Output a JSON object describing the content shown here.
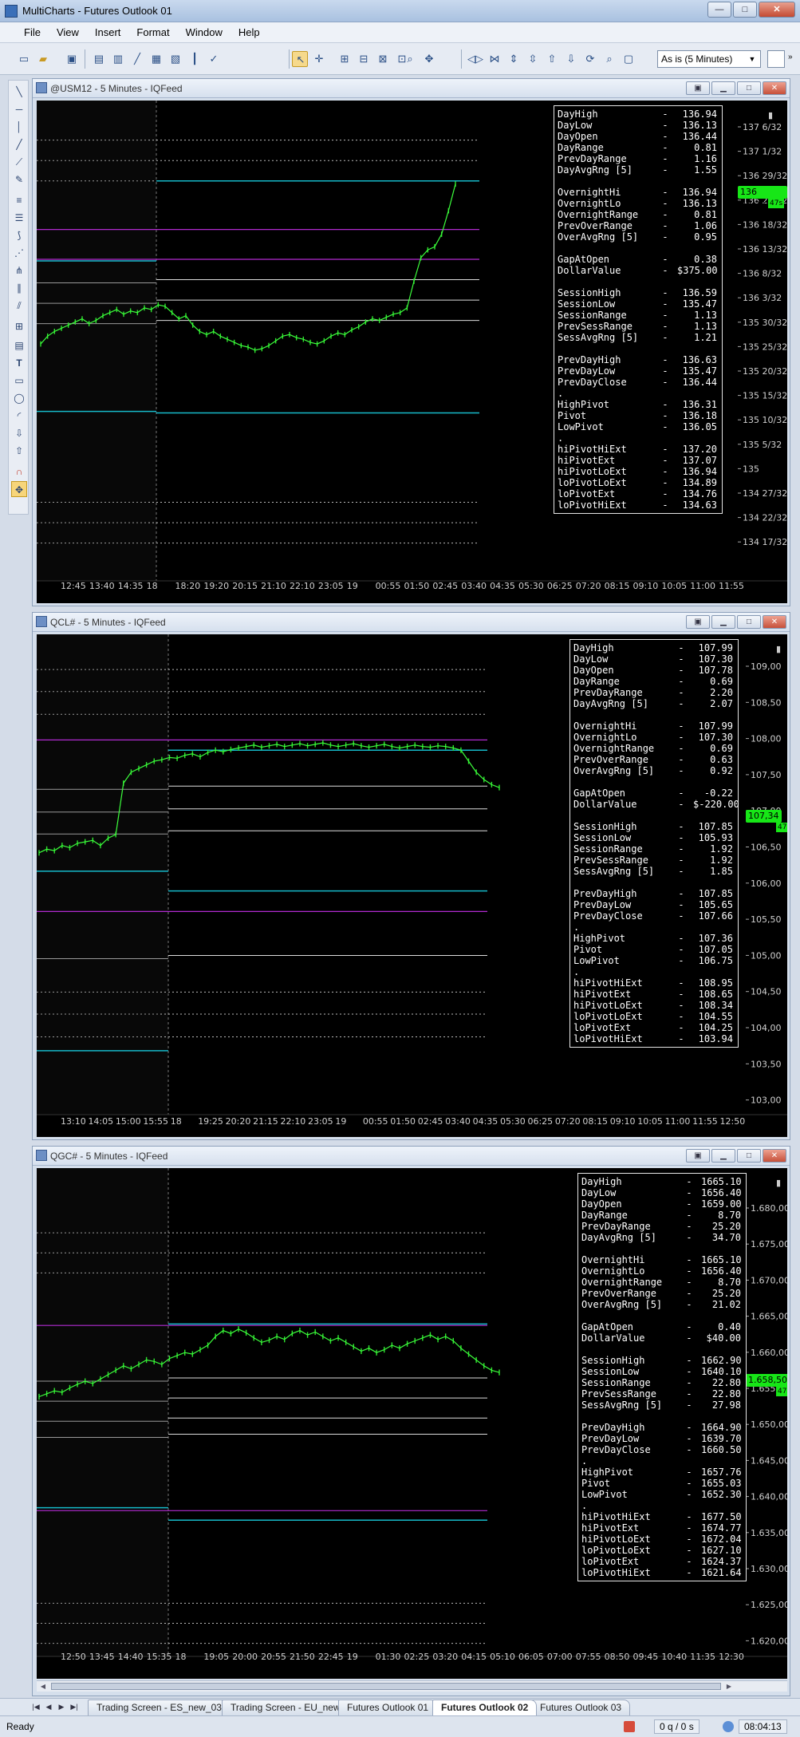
{
  "window": {
    "title": "MultiCharts - Futures Outlook 01",
    "buttons": {
      "minimize": "—",
      "maximize": "□",
      "close": "✕"
    }
  },
  "menu": [
    "File",
    "View",
    "Insert",
    "Format",
    "Window",
    "Help"
  ],
  "toolbar": {
    "interval": "As is (5 Minutes)",
    "icons": [
      "new-window-icon",
      "open-folder-icon",
      "save-icon",
      "cursor-icon",
      "crosshair-icon",
      "zoom-icon",
      "pan-icon",
      "chart-type-icon",
      "add-study-icon",
      "format-icon",
      "scroll-left-icon",
      "scroll-right-icon",
      "zoom-in-icon",
      "zoom-out-icon",
      "magnifier-icon"
    ]
  },
  "drawing_tools": [
    "line-tool-icon",
    "horizontal-line-icon",
    "vertical-line-icon",
    "ray-icon",
    "extended-line-icon",
    "pencil-icon",
    "parallel-lines-icon",
    "fib-retracement-icon",
    "fib-fan-icon",
    "gann-fan-icon",
    "andrews-pitchfork-icon",
    "fib-timezones-icon",
    "regression-channel-icon",
    "text-tool-icon",
    "rectangle-tool-icon",
    "ellipse-tool-icon",
    "arc-tool-icon",
    "arrow-down-icon",
    "arrow-up-icon",
    "magnet-icon",
    "snap-icon"
  ],
  "charts": [
    {
      "id": "usm12",
      "title": "@USM12 - 5 Minutes - IQFeed",
      "price_labels": [
        "137 6/32",
        "137 1/32",
        "136 29/32",
        "136 23/32",
        "136 18/32",
        "136 13/32",
        "136 8/32",
        "136 3/32",
        "135 30/32",
        "135 25/32",
        "135 20/32",
        "135 15/32",
        "135 10/32",
        "135 5/32",
        "135",
        "134 27/32",
        "134 22/32",
        "134 17/32"
      ],
      "last_price": "136 29/32",
      "count_tag": "47s",
      "time_labels": [
        "12:45",
        "13:40",
        "14:35",
        "18",
        "18:20",
        "19:20",
        "20:15",
        "21:10",
        "22:10",
        "23:05",
        "19",
        "00:55",
        "01:50",
        "02:45",
        "03:40",
        "04:35",
        "05:30",
        "06:25",
        "07:20",
        "08:15",
        "09:10",
        "10:05",
        "11:00",
        "11:55"
      ],
      "info": [
        [
          "DayHigh",
          "-",
          "136.94"
        ],
        [
          "DayLow",
          "-",
          "136.13"
        ],
        [
          "DayOpen",
          "-",
          "136.44"
        ],
        [
          "DayRange",
          "-",
          "0.81"
        ],
        [
          "PrevDayRange",
          "-",
          "1.16"
        ],
        [
          "DayAvgRng [5]",
          "-",
          "1.55"
        ],
        null,
        [
          "OvernightHi",
          "-",
          "136.94"
        ],
        [
          "OvernightLo",
          "-",
          "136.13"
        ],
        [
          "OvernightRange",
          "-",
          "0.81"
        ],
        [
          "PrevOverRange",
          "-",
          "1.06"
        ],
        [
          "OverAvgRng [5]",
          "-",
          "0.95"
        ],
        null,
        [
          "GapAtOpen",
          "-",
          "0.38"
        ],
        [
          "DollarValue",
          "-",
          "$375.00"
        ],
        null,
        [
          "SessionHigh",
          "-",
          "136.59"
        ],
        [
          "SessionLow",
          "-",
          "135.47"
        ],
        [
          "SessionRange",
          "-",
          "1.13"
        ],
        [
          "PrevSessRange",
          "-",
          "1.13"
        ],
        [
          "SessAvgRng [5]",
          "-",
          "1.21"
        ],
        null,
        [
          "PrevDayHigh",
          "-",
          "136.63"
        ],
        [
          "PrevDayLow",
          "-",
          "135.47"
        ],
        [
          "PrevDayClose",
          "-",
          "136.44"
        ],
        ".",
        [
          "HighPivot",
          "-",
          "136.31"
        ],
        [
          "Pivot",
          "-",
          "136.18"
        ],
        [
          "LowPivot",
          "-",
          "136.05"
        ],
        ".",
        [
          "hiPivotHiExt",
          "-",
          "137.20"
        ],
        [
          "hiPivotExt",
          "-",
          "137.07"
        ],
        [
          "hiPivotLoExt",
          "-",
          "136.94"
        ],
        [
          "loPivotLoExt",
          "-",
          "134.89"
        ],
        [
          "loPivotExt",
          "-",
          "134.76"
        ],
        [
          "loPivotHiExt",
          "-",
          "134.63"
        ]
      ],
      "chart_data": {
        "type": "line",
        "ylim": [
          134.45,
          137.3
        ],
        "series": [
          {
            "values": [
              135.9,
              135.95,
              135.98,
              136.0,
              136.02,
              136.04,
              136.06,
              136.03,
              136.05,
              136.08,
              136.1,
              136.12,
              136.09,
              136.11,
              136.1,
              136.13,
              136.12,
              136.15,
              136.14,
              136.1,
              136.06,
              136.08,
              136.02,
              135.98,
              135.96,
              135.98,
              135.95,
              135.93,
              135.91,
              135.89,
              135.88,
              135.86,
              135.87,
              135.89,
              135.92,
              135.95,
              135.96,
              135.94,
              135.93,
              135.91,
              135.9,
              135.92,
              135.95,
              135.97,
              135.96,
              135.99,
              136.01,
              136.04,
              136.06,
              136.05,
              136.07,
              136.09,
              136.1,
              136.13,
              136.3,
              136.45,
              136.5,
              136.52,
              136.6,
              136.75,
              136.92
            ]
          }
        ],
        "levels": {
          "cyan": [
            136.94,
            136.43,
            135.46,
            135.47
          ],
          "magenta": [
            136.63,
            136.44
          ],
          "white": [
            136.18,
            136.31,
            136.05
          ],
          "dotted": [
            137.2,
            137.07,
            136.94,
            134.89,
            134.76,
            134.63
          ]
        }
      }
    },
    {
      "id": "qcl",
      "title": "QCL# - 5 Minutes - IQFeed",
      "price_labels": [
        "109,00",
        "108,50",
        "108,00",
        "107,50",
        "107,00",
        "106,50",
        "106,00",
        "105,50",
        "105,00",
        "104,50",
        "104,00",
        "103,50",
        "103,00"
      ],
      "last_price": "107,34",
      "count_tag": "47s",
      "time_labels": [
        "13:10",
        "14:05",
        "15:00",
        "15:55",
        "18",
        "19:25",
        "20:20",
        "21:15",
        "22:10",
        "23:05",
        "19",
        "00:55",
        "01:50",
        "02:45",
        "03:40",
        "04:35",
        "05:30",
        "06:25",
        "07:20",
        "08:15",
        "09:10",
        "10:05",
        "11:00",
        "11:55",
        "12:50"
      ],
      "info": [
        [
          "DayHigh",
          "-",
          "107.99"
        ],
        [
          "DayLow",
          "-",
          "107.30"
        ],
        [
          "DayOpen",
          "-",
          "107.78"
        ],
        [
          "DayRange",
          "-",
          "0.69"
        ],
        [
          "PrevDayRange",
          "-",
          "2.20"
        ],
        [
          "DayAvgRng [5]",
          "-",
          "2.07"
        ],
        null,
        [
          "OvernightHi",
          "-",
          "107.99"
        ],
        [
          "OvernightLo",
          "-",
          "107.30"
        ],
        [
          "OvernightRange",
          "-",
          "0.69"
        ],
        [
          "PrevOverRange",
          "-",
          "0.63"
        ],
        [
          "OverAvgRng [5]",
          "-",
          "0.92"
        ],
        null,
        [
          "GapAtOpen",
          "-",
          "-0.22"
        ],
        [
          "DollarValue",
          "-",
          "$-220.00"
        ],
        null,
        [
          "SessionHigh",
          "-",
          "107.85"
        ],
        [
          "SessionLow",
          "-",
          "105.93"
        ],
        [
          "SessionRange",
          "-",
          "1.92"
        ],
        [
          "PrevSessRange",
          "-",
          "1.92"
        ],
        [
          "SessAvgRng [5]",
          "-",
          "1.85"
        ],
        null,
        [
          "PrevDayHigh",
          "-",
          "107.85"
        ],
        [
          "PrevDayLow",
          "-",
          "105.65"
        ],
        [
          "PrevDayClose",
          "-",
          "107.66"
        ],
        ".",
        [
          "HighPivot",
          "-",
          "107.36"
        ],
        [
          "Pivot",
          "-",
          "107.05"
        ],
        [
          "LowPivot",
          "-",
          "106.75"
        ],
        ".",
        [
          "hiPivotHiExt",
          "-",
          "108.95"
        ],
        [
          "hiPivotExt",
          "-",
          "108.65"
        ],
        [
          "hiPivotLoExt",
          "-",
          "108.34"
        ],
        [
          "loPivotLoExt",
          "-",
          "104.55"
        ],
        [
          "loPivotExt",
          "-",
          "104.25"
        ],
        [
          "loPivotHiExt",
          "-",
          "103.94"
        ]
      ],
      "chart_data": {
        "type": "line",
        "ylim": [
          102.9,
          109.3
        ],
        "series": [
          {
            "values": [
              106.45,
              106.5,
              106.48,
              106.55,
              106.52,
              106.58,
              106.6,
              106.62,
              106.55,
              106.65,
              106.7,
              107.4,
              107.55,
              107.6,
              107.65,
              107.7,
              107.72,
              107.75,
              107.74,
              107.78,
              107.8,
              107.76,
              107.82,
              107.85,
              107.83,
              107.86,
              107.88,
              107.9,
              107.92,
              107.89,
              107.91,
              107.93,
              107.9,
              107.92,
              107.94,
              107.91,
              107.93,
              107.95,
              107.92,
              107.9,
              107.92,
              107.94,
              107.91,
              107.89,
              107.91,
              107.93,
              107.9,
              107.88,
              107.9,
              107.92,
              107.9,
              107.89,
              107.91,
              107.9,
              107.88,
              107.85,
              107.7,
              107.55,
              107.45,
              107.38,
              107.34
            ]
          }
        ],
        "levels": {
          "cyan": [
            107.85,
            106.2,
            105.93,
            103.75
          ],
          "magenta": [
            107.99,
            105.65
          ],
          "white": [
            107.36,
            107.05,
            106.75,
            105.05
          ],
          "dotted": [
            108.95,
            108.65,
            108.34,
            104.55,
            104.25,
            103.94
          ]
        }
      }
    },
    {
      "id": "qgc",
      "title": "QGC# - 5 Minutes - IQFeed",
      "price_labels": [
        "1.680,00",
        "1.675,00",
        "1.670,00",
        "1.665,00",
        "1.660,00",
        "1.655,00",
        "1.650,00",
        "1.645,00",
        "1.640,00",
        "1.635,00",
        "1.630,00",
        "1.625,00",
        "1.620,00"
      ],
      "last_price": "1.658,50",
      "count_tag": "47s",
      "time_labels": [
        "12:50",
        "13:45",
        "14:40",
        "15:35",
        "18",
        "19:05",
        "20:00",
        "20:55",
        "21:50",
        "22:45",
        "19",
        "01:30",
        "02:25",
        "03:20",
        "04:15",
        "05:10",
        "06:05",
        "07:00",
        "07:55",
        "08:50",
        "09:45",
        "10:40",
        "11:35",
        "12:30"
      ],
      "info": [
        [
          "DayHigh",
          "-",
          "1665.10"
        ],
        [
          "DayLow",
          "-",
          "1656.40"
        ],
        [
          "DayOpen",
          "-",
          "1659.00"
        ],
        [
          "DayRange",
          "-",
          "8.70"
        ],
        [
          "PrevDayRange",
          "-",
          "25.20"
        ],
        [
          "DayAvgRng [5]",
          "-",
          "34.70"
        ],
        null,
        [
          "OvernightHi",
          "-",
          "1665.10"
        ],
        [
          "OvernightLo",
          "-",
          "1656.40"
        ],
        [
          "OvernightRange",
          "-",
          "8.70"
        ],
        [
          "PrevOverRange",
          "-",
          "25.20"
        ],
        [
          "OverAvgRng [5]",
          "-",
          "21.02"
        ],
        null,
        [
          "GapAtOpen",
          "-",
          "0.40"
        ],
        [
          "DollarValue",
          "-",
          "$40.00"
        ],
        null,
        [
          "SessionHigh",
          "-",
          "1662.90"
        ],
        [
          "SessionLow",
          "-",
          "1640.10"
        ],
        [
          "SessionRange",
          "-",
          "22.80"
        ],
        [
          "PrevSessRange",
          "-",
          "22.80"
        ],
        [
          "SessAvgRng [5]",
          "-",
          "27.98"
        ],
        null,
        [
          "PrevDayHigh",
          "-",
          "1664.90"
        ],
        [
          "PrevDayLow",
          "-",
          "1639.70"
        ],
        [
          "PrevDayClose",
          "-",
          "1660.50"
        ],
        ".",
        [
          "HighPivot",
          "-",
          "1657.76"
        ],
        [
          "Pivot",
          "-",
          "1655.03"
        ],
        [
          "LowPivot",
          "-",
          "1652.30"
        ],
        ".",
        [
          "hiPivotHiExt",
          "-",
          "1677.50"
        ],
        [
          "hiPivotExt",
          "-",
          "1674.77"
        ],
        [
          "hiPivotLoExt",
          "-",
          "1672.04"
        ],
        [
          "loPivotLoExt",
          "-",
          "1627.10"
        ],
        [
          "loPivotExt",
          "-",
          "1624.37"
        ],
        [
          "loPivotHiExt",
          "-",
          "1621.64"
        ]
      ],
      "chart_data": {
        "type": "line",
        "ylim": [
          1619,
          1685
        ],
        "series": [
          {
            "values": [
              1655.2,
              1655.6,
              1656.0,
              1655.8,
              1656.4,
              1656.9,
              1657.3,
              1657.0,
              1657.6,
              1658.2,
              1658.8,
              1659.4,
              1659.0,
              1659.6,
              1660.2,
              1660.0,
              1659.6,
              1660.4,
              1660.8,
              1661.2,
              1661.0,
              1661.6,
              1662.2,
              1663.4,
              1664.2,
              1663.8,
              1664.4,
              1663.9,
              1663.2,
              1662.6,
              1662.9,
              1663.4,
              1663.0,
              1663.8,
              1664.2,
              1663.6,
              1664.0,
              1663.4,
              1662.8,
              1663.2,
              1662.6,
              1662.0,
              1661.4,
              1661.8,
              1661.2,
              1661.6,
              1662.2,
              1661.8,
              1662.4,
              1662.8,
              1663.2,
              1663.6,
              1663.0,
              1663.4,
              1662.8,
              1661.8,
              1661.0,
              1660.2,
              1659.4,
              1658.8,
              1658.5
            ]
          }
        ],
        "levels": {
          "cyan": [
            1665.1,
            1640.1,
            1638.4
          ],
          "magenta": [
            1664.9,
            1639.7
          ],
          "white": [
            1657.76,
            1655.03,
            1652.3,
            1650.1
          ],
          "dotted": [
            1677.5,
            1674.77,
            1672.04,
            1627.1,
            1624.37,
            1621.64
          ]
        }
      }
    }
  ],
  "tabs": [
    "Trading Screen - ES_new_03",
    "Trading Screen - EU_new",
    "Futures Outlook 01",
    "Futures Outlook 02",
    "Futures Outlook 03"
  ],
  "active_tab": 3,
  "status": {
    "ready": "Ready",
    "queue": "0 q / 0 s",
    "time": "08:04:13"
  }
}
